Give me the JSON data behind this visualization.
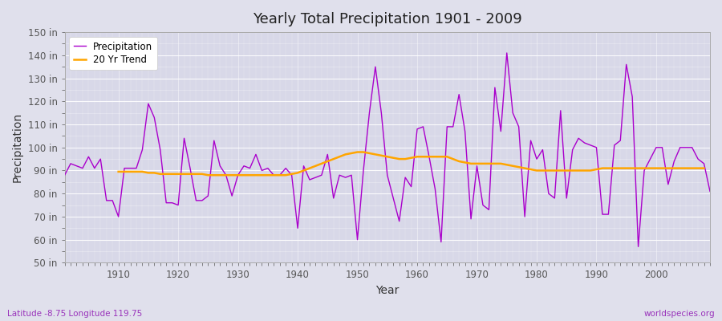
{
  "title": "Yearly Total Precipitation 1901 - 2009",
  "ylabel": "Precipitation",
  "xlabel": "Year",
  "bottom_left_label": "Latitude -8.75 Longitude 119.75",
  "bottom_right_label": "worldspecies.org",
  "precip_color": "#AA00CC",
  "trend_color": "#FFA500",
  "background_color": "#E0E0EC",
  "plot_bg_color": "#D8D8E8",
  "ylim": [
    50,
    150
  ],
  "yticks": [
    50,
    60,
    70,
    80,
    90,
    100,
    110,
    120,
    130,
    140,
    150
  ],
  "xtick_positions": [
    1910,
    1920,
    1930,
    1940,
    1950,
    1960,
    1970,
    1980,
    1990,
    2000
  ],
  "xlim": [
    1901,
    2009
  ],
  "years": [
    1901,
    1902,
    1903,
    1904,
    1905,
    1906,
    1907,
    1908,
    1909,
    1910,
    1911,
    1912,
    1913,
    1914,
    1915,
    1916,
    1917,
    1918,
    1919,
    1920,
    1921,
    1922,
    1923,
    1924,
    1925,
    1926,
    1927,
    1928,
    1929,
    1930,
    1931,
    1932,
    1933,
    1934,
    1935,
    1936,
    1937,
    1938,
    1939,
    1940,
    1941,
    1942,
    1943,
    1944,
    1945,
    1946,
    1947,
    1948,
    1949,
    1950,
    1951,
    1952,
    1953,
    1954,
    1955,
    1956,
    1957,
    1958,
    1959,
    1960,
    1961,
    1962,
    1963,
    1964,
    1965,
    1966,
    1967,
    1968,
    1969,
    1970,
    1971,
    1972,
    1973,
    1974,
    1975,
    1976,
    1977,
    1978,
    1979,
    1980,
    1981,
    1982,
    1983,
    1984,
    1985,
    1986,
    1987,
    1988,
    1989,
    1990,
    1991,
    1992,
    1993,
    1994,
    1995,
    1996,
    1997,
    1998,
    1999,
    2000,
    2001,
    2002,
    2003,
    2004,
    2005,
    2006,
    2007,
    2008,
    2009
  ],
  "precip": [
    88,
    93,
    92,
    91,
    96,
    91,
    95,
    77,
    77,
    70,
    91,
    91,
    91,
    99,
    119,
    113,
    99,
    76,
    76,
    75,
    104,
    91,
    77,
    77,
    79,
    103,
    92,
    88,
    79,
    88,
    92,
    91,
    97,
    90,
    91,
    88,
    88,
    91,
    88,
    65,
    92,
    86,
    87,
    88,
    97,
    78,
    88,
    87,
    88,
    60,
    90,
    115,
    135,
    115,
    88,
    78,
    68,
    87,
    83,
    108,
    109,
    96,
    82,
    59,
    109,
    109,
    123,
    107,
    69,
    92,
    75,
    73,
    126,
    107,
    141,
    115,
    109,
    70,
    103,
    95,
    99,
    80,
    78,
    116,
    78,
    99,
    104,
    102,
    101,
    100,
    71,
    71,
    101,
    103,
    136,
    122,
    57,
    90,
    95,
    100,
    100,
    84,
    94,
    100,
    100,
    100,
    95,
    93,
    81
  ],
  "trend_start_year": 1910,
  "trend": [
    89.5,
    89.5,
    89.5,
    89.5,
    89.5,
    89.0,
    89.0,
    88.5,
    88.5,
    88.5,
    88.5,
    88.5,
    88.5,
    88.5,
    88.5,
    88.0,
    88.0,
    88.0,
    88.0,
    88.0,
    88.0,
    88.0,
    88.0,
    88.0,
    88.0,
    88.0,
    88.0,
    88.0,
    88.0,
    88.5,
    89.0,
    90.0,
    91.0,
    92.0,
    93.0,
    94.0,
    95.0,
    96.0,
    97.0,
    97.5,
    98.0,
    98.0,
    97.5,
    97.0,
    96.5,
    96.0,
    95.5,
    95.0,
    95.0,
    95.5,
    96.0,
    96.0,
    96.0,
    96.0,
    96.0,
    96.0,
    95.0,
    94.0,
    93.5,
    93.0,
    93.0,
    93.0,
    93.0,
    93.0,
    93.0,
    92.5,
    92.0,
    91.5,
    91.0,
    90.5,
    90.0,
    90.0,
    90.0,
    90.0,
    90.0,
    90.0,
    90.0,
    90.0,
    90.0,
    90.0,
    90.5,
    91.0,
    91.0,
    91.0,
    91.0,
    91.0,
    91.0,
    91.0,
    91.0,
    91.0,
    91.0,
    91.0,
    91.0,
    91.0,
    91.0,
    91.0,
    91.0,
    91.0,
    91.0
  ]
}
